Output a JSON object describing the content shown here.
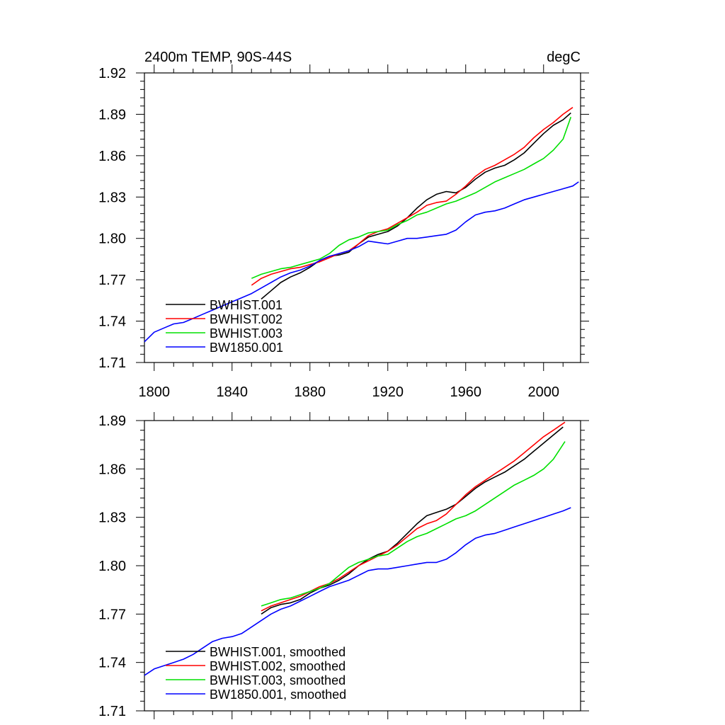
{
  "chart_data": [
    {
      "type": "line",
      "title_left": "2400m TEMP, 90S-44S",
      "title_right": "degC",
      "xlim": [
        1795,
        2019
      ],
      "ylim": [
        1.71,
        1.92
      ],
      "x_ticks": [
        1800,
        1840,
        1880,
        1920,
        1960,
        2000
      ],
      "y_ticks": [
        "1.71",
        "1.74",
        "1.77",
        "1.80",
        "1.83",
        "1.86",
        "1.89",
        "1.92"
      ],
      "grid": false,
      "legend_position": "bottom-left",
      "series": [
        {
          "name": "BWHIST.001",
          "color": "#000000",
          "x": [
            1855,
            1860,
            1865,
            1870,
            1875,
            1880,
            1885,
            1890,
            1895,
            1900,
            1905,
            1910,
            1915,
            1920,
            1925,
            1930,
            1935,
            1940,
            1945,
            1950,
            1955,
            1960,
            1965,
            1970,
            1975,
            1980,
            1985,
            1990,
            1995,
            2000,
            2005,
            2010,
            2014
          ],
          "values": [
            1.756,
            1.762,
            1.768,
            1.772,
            1.775,
            1.779,
            1.784,
            1.787,
            1.788,
            1.79,
            1.796,
            1.801,
            1.803,
            1.805,
            1.809,
            1.815,
            1.822,
            1.828,
            1.832,
            1.834,
            1.833,
            1.837,
            1.843,
            1.848,
            1.851,
            1.853,
            1.857,
            1.862,
            1.869,
            1.876,
            1.882,
            1.886,
            1.891
          ]
        },
        {
          "name": "BWHIST.002",
          "color": "#ff0000",
          "x": [
            1850,
            1855,
            1860,
            1865,
            1870,
            1875,
            1880,
            1885,
            1890,
            1895,
            1900,
            1905,
            1910,
            1915,
            1920,
            1925,
            1930,
            1935,
            1940,
            1945,
            1950,
            1955,
            1960,
            1965,
            1970,
            1975,
            1980,
            1985,
            1990,
            1995,
            2000,
            2005,
            2010,
            2015
          ],
          "values": [
            1.766,
            1.771,
            1.774,
            1.776,
            1.778,
            1.779,
            1.781,
            1.783,
            1.786,
            1.789,
            1.791,
            1.796,
            1.802,
            1.805,
            1.807,
            1.811,
            1.815,
            1.819,
            1.824,
            1.826,
            1.827,
            1.832,
            1.838,
            1.845,
            1.85,
            1.853,
            1.857,
            1.861,
            1.866,
            1.873,
            1.879,
            1.884,
            1.89,
            1.895
          ]
        },
        {
          "name": "BWHIST.003",
          "color": "#00e000",
          "x": [
            1850,
            1855,
            1860,
            1865,
            1870,
            1875,
            1880,
            1885,
            1890,
            1895,
            1900,
            1905,
            1910,
            1915,
            1920,
            1925,
            1930,
            1935,
            1940,
            1945,
            1950,
            1955,
            1960,
            1965,
            1970,
            1975,
            1980,
            1985,
            1990,
            1995,
            2000,
            2005,
            2010,
            2014
          ],
          "values": [
            1.771,
            1.774,
            1.776,
            1.778,
            1.779,
            1.781,
            1.783,
            1.785,
            1.789,
            1.795,
            1.799,
            1.801,
            1.804,
            1.805,
            1.806,
            1.81,
            1.813,
            1.817,
            1.819,
            1.822,
            1.825,
            1.827,
            1.83,
            1.833,
            1.837,
            1.841,
            1.844,
            1.847,
            1.85,
            1.854,
            1.858,
            1.864,
            1.872,
            1.888
          ]
        },
        {
          "name": "BW1850.001",
          "color": "#0000ff",
          "x": [
            1795,
            1800,
            1805,
            1810,
            1815,
            1820,
            1825,
            1830,
            1835,
            1840,
            1845,
            1850,
            1855,
            1860,
            1865,
            1870,
            1875,
            1880,
            1885,
            1890,
            1895,
            1900,
            1905,
            1910,
            1915,
            1920,
            1925,
            1930,
            1935,
            1940,
            1945,
            1950,
            1955,
            1960,
            1965,
            1970,
            1975,
            1980,
            1985,
            1990,
            1995,
            2000,
            2005,
            2010,
            2015,
            2018
          ],
          "values": [
            1.725,
            1.732,
            1.735,
            1.738,
            1.739,
            1.742,
            1.745,
            1.748,
            1.751,
            1.754,
            1.757,
            1.76,
            1.764,
            1.768,
            1.772,
            1.775,
            1.777,
            1.78,
            1.784,
            1.787,
            1.789,
            1.791,
            1.794,
            1.798,
            1.797,
            1.796,
            1.798,
            1.8,
            1.8,
            1.801,
            1.802,
            1.803,
            1.806,
            1.812,
            1.817,
            1.819,
            1.82,
            1.822,
            1.825,
            1.828,
            1.83,
            1.832,
            1.834,
            1.836,
            1.838,
            1.841
          ]
        }
      ]
    },
    {
      "type": "line",
      "xlim": [
        1795,
        2019
      ],
      "ylim": [
        1.71,
        1.89
      ],
      "y_ticks": [
        "1.71",
        "1.74",
        "1.77",
        "1.80",
        "1.83",
        "1.86",
        "1.89"
      ],
      "grid": false,
      "legend_position": "bottom-left",
      "series": [
        {
          "name": "BWHIST.001, smoothed",
          "color": "#000000",
          "x": [
            1855,
            1860,
            1865,
            1870,
            1875,
            1880,
            1885,
            1890,
            1895,
            1900,
            1905,
            1910,
            1915,
            1920,
            1925,
            1930,
            1935,
            1940,
            1945,
            1950,
            1955,
            1960,
            1965,
            1970,
            1975,
            1980,
            1985,
            1990,
            1995,
            2000,
            2005,
            2010
          ],
          "values": [
            1.77,
            1.774,
            1.776,
            1.777,
            1.779,
            1.783,
            1.786,
            1.788,
            1.791,
            1.795,
            1.8,
            1.804,
            1.807,
            1.809,
            1.814,
            1.82,
            1.826,
            1.831,
            1.833,
            1.835,
            1.838,
            1.843,
            1.848,
            1.852,
            1.855,
            1.858,
            1.862,
            1.866,
            1.871,
            1.876,
            1.881,
            1.886
          ]
        },
        {
          "name": "BWHIST.002, smoothed",
          "color": "#ff0000",
          "x": [
            1855,
            1860,
            1865,
            1870,
            1875,
            1880,
            1885,
            1890,
            1895,
            1900,
            1905,
            1910,
            1915,
            1920,
            1925,
            1930,
            1935,
            1940,
            1945,
            1950,
            1955,
            1960,
            1965,
            1970,
            1975,
            1980,
            1985,
            1990,
            1995,
            2000,
            2005,
            2011
          ],
          "values": [
            1.772,
            1.775,
            1.777,
            1.779,
            1.781,
            1.784,
            1.787,
            1.789,
            1.792,
            1.796,
            1.8,
            1.803,
            1.806,
            1.809,
            1.813,
            1.818,
            1.823,
            1.826,
            1.828,
            1.832,
            1.838,
            1.844,
            1.849,
            1.853,
            1.857,
            1.861,
            1.865,
            1.87,
            1.875,
            1.88,
            1.884,
            1.889
          ]
        },
        {
          "name": "BWHIST.003, smoothed",
          "color": "#00e000",
          "x": [
            1855,
            1860,
            1865,
            1870,
            1875,
            1880,
            1885,
            1890,
            1895,
            1900,
            1905,
            1910,
            1915,
            1920,
            1925,
            1930,
            1935,
            1940,
            1945,
            1950,
            1955,
            1960,
            1965,
            1970,
            1975,
            1980,
            1985,
            1990,
            1995,
            2000,
            2005,
            2011
          ],
          "values": [
            1.775,
            1.777,
            1.779,
            1.78,
            1.782,
            1.784,
            1.786,
            1.789,
            1.794,
            1.799,
            1.802,
            1.804,
            1.806,
            1.807,
            1.811,
            1.815,
            1.818,
            1.82,
            1.823,
            1.826,
            1.829,
            1.831,
            1.834,
            1.838,
            1.842,
            1.846,
            1.85,
            1.853,
            1.856,
            1.86,
            1.866,
            1.877
          ]
        },
        {
          "name": "BW1850.001, smoothed",
          "color": "#0000ff",
          "x": [
            1795,
            1800,
            1805,
            1810,
            1815,
            1820,
            1825,
            1830,
            1835,
            1840,
            1845,
            1850,
            1855,
            1860,
            1865,
            1870,
            1875,
            1880,
            1885,
            1890,
            1895,
            1900,
            1905,
            1910,
            1915,
            1920,
            1925,
            1930,
            1935,
            1940,
            1945,
            1950,
            1955,
            1960,
            1965,
            1970,
            1975,
            1980,
            1985,
            1990,
            1995,
            2000,
            2005,
            2010,
            2014
          ],
          "values": [
            1.732,
            1.736,
            1.738,
            1.74,
            1.742,
            1.745,
            1.749,
            1.753,
            1.755,
            1.756,
            1.758,
            1.762,
            1.766,
            1.77,
            1.773,
            1.775,
            1.778,
            1.781,
            1.784,
            1.787,
            1.789,
            1.791,
            1.794,
            1.797,
            1.798,
            1.798,
            1.799,
            1.8,
            1.801,
            1.802,
            1.802,
            1.804,
            1.808,
            1.813,
            1.817,
            1.819,
            1.82,
            1.822,
            1.824,
            1.826,
            1.828,
            1.83,
            1.832,
            1.834,
            1.836
          ]
        }
      ]
    }
  ]
}
